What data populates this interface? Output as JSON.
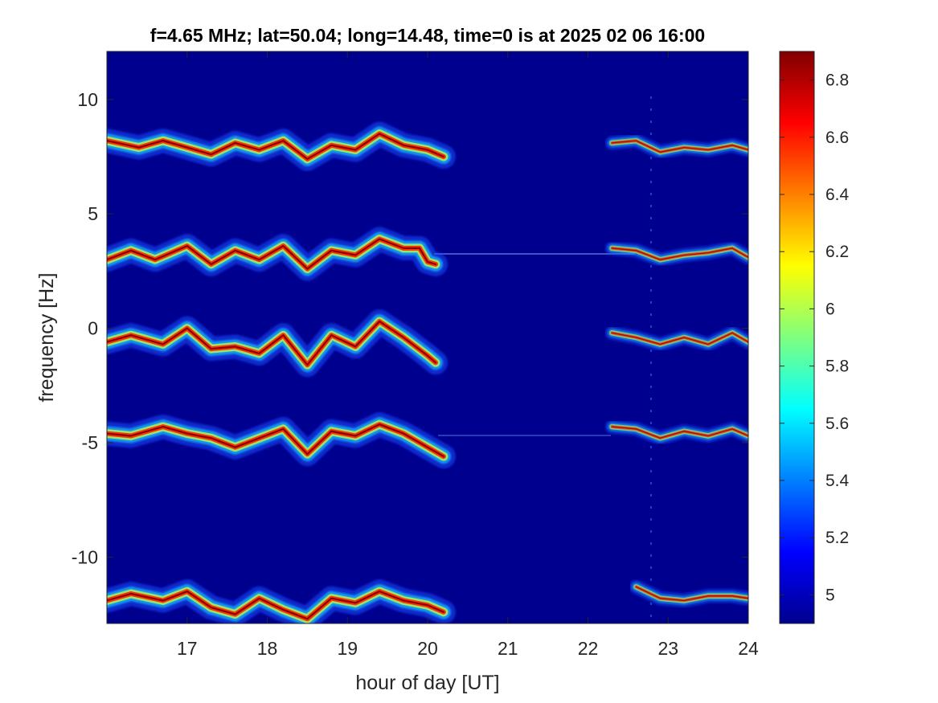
{
  "chart_data": {
    "type": "heatmap",
    "title": "f=4.65 MHz;  lat=50.04; long=14.48, time=0 is at 2025 02 06 16:00",
    "xlabel": "hour of day [UT]",
    "ylabel": "frequency [Hz]",
    "xlim": [
      16,
      24
    ],
    "ylim": [
      -12.9,
      12.1
    ],
    "xticks": [
      17,
      18,
      19,
      20,
      21,
      22,
      23,
      24
    ],
    "yticks": [
      10,
      5,
      0,
      -5,
      -10
    ],
    "ytick_labels": [
      "10",
      "5",
      "0",
      "-5",
      "-10"
    ],
    "colorbar": {
      "range": [
        4.9,
        6.9
      ],
      "ticks": [
        6.8,
        6.6,
        6.4,
        6.2,
        6,
        5.8,
        5.6,
        5.4,
        5.2,
        5
      ],
      "tick_labels": [
        "6.8",
        "6.6",
        "6.4",
        "6.2",
        "6",
        "5.8",
        "5.6",
        "5.4",
        "5.2",
        "5"
      ],
      "colormap": "jet",
      "background": "#00008f"
    },
    "series": [
      {
        "x": [
          16.0,
          16.4,
          16.7,
          17.0,
          17.3,
          17.6,
          17.9,
          18.2,
          18.5,
          18.8,
          19.1,
          19.4,
          19.7,
          20.0,
          20.2
        ],
        "y": [
          8.2,
          7.9,
          8.2,
          7.9,
          7.6,
          8.1,
          7.8,
          8.2,
          7.4,
          8.0,
          7.8,
          8.5,
          8.0,
          7.8,
          7.5
        ]
      },
      {
        "x": [
          22.3,
          22.6,
          22.9,
          23.2,
          23.5,
          23.8,
          24.0
        ],
        "y": [
          8.1,
          8.2,
          7.7,
          7.9,
          7.8,
          8.0,
          7.8
        ]
      },
      {
        "x": [
          16.0,
          16.3,
          16.6,
          17.0,
          17.3,
          17.6,
          17.9,
          18.2,
          18.5,
          18.8,
          19.1,
          19.4,
          19.7,
          19.9,
          20.0,
          20.1
        ],
        "y": [
          3.0,
          3.4,
          3.0,
          3.6,
          2.8,
          3.4,
          3.0,
          3.6,
          2.6,
          3.4,
          3.2,
          3.9,
          3.5,
          3.5,
          2.9,
          2.8
        ]
      },
      {
        "x": [
          22.3,
          22.6,
          22.9,
          23.2,
          23.5,
          23.8,
          24.0
        ],
        "y": [
          3.5,
          3.4,
          3.0,
          3.2,
          3.3,
          3.5,
          3.1
        ]
      },
      {
        "x": [
          16.0,
          16.3,
          16.7,
          17.0,
          17.3,
          17.6,
          17.9,
          18.2,
          18.5,
          18.8,
          19.1,
          19.4,
          19.7,
          20.0,
          20.1
        ],
        "y": [
          -0.6,
          -0.3,
          -0.7,
          0.0,
          -0.9,
          -0.8,
          -1.1,
          -0.3,
          -1.6,
          -0.3,
          -0.8,
          0.3,
          -0.4,
          -1.2,
          -1.5
        ]
      },
      {
        "x": [
          22.3,
          22.6,
          22.9,
          23.2,
          23.5,
          23.8,
          24.0
        ],
        "y": [
          -0.2,
          -0.4,
          -0.7,
          -0.4,
          -0.7,
          -0.2,
          -0.6
        ]
      },
      {
        "x": [
          16.0,
          16.3,
          16.7,
          17.0,
          17.3,
          17.6,
          17.9,
          18.2,
          18.5,
          18.8,
          19.1,
          19.4,
          19.7,
          20.0,
          20.2
        ],
        "y": [
          -4.6,
          -4.7,
          -4.3,
          -4.6,
          -4.8,
          -5.2,
          -4.8,
          -4.4,
          -5.5,
          -4.5,
          -4.7,
          -4.2,
          -4.6,
          -5.2,
          -5.6
        ]
      },
      {
        "x": [
          22.3,
          22.6,
          22.9,
          23.2,
          23.5,
          23.8,
          24.0
        ],
        "y": [
          -4.3,
          -4.4,
          -4.8,
          -4.5,
          -4.7,
          -4.4,
          -4.7
        ]
      },
      {
        "x": [
          16.0,
          16.3,
          16.7,
          17.0,
          17.3,
          17.6,
          17.9,
          18.2,
          18.5,
          18.8,
          19.1,
          19.4,
          19.7,
          20.0,
          20.2
        ],
        "y": [
          -11.9,
          -11.6,
          -11.9,
          -11.5,
          -12.2,
          -12.5,
          -11.8,
          -12.3,
          -12.7,
          -11.8,
          -12.0,
          -11.5,
          -11.9,
          -12.1,
          -12.4
        ]
      },
      {
        "x": [
          22.6,
          22.9,
          23.2,
          23.5,
          23.8,
          24.0
        ],
        "y": [
          -11.3,
          -11.8,
          -11.9,
          -11.7,
          -11.7,
          -11.8
        ]
      }
    ]
  }
}
